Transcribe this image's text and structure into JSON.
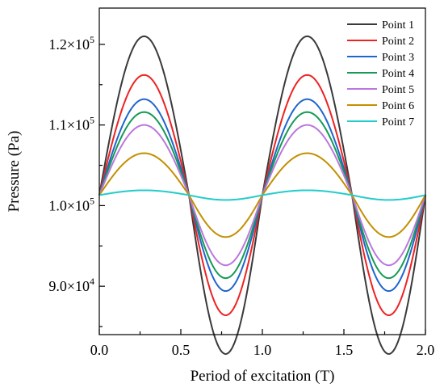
{
  "chart_data": {
    "type": "line",
    "xlabel": "Period of excitation (T)",
    "ylabel": "Pressure (Pa)",
    "xlim": [
      0,
      2
    ],
    "ylim": [
      84000,
      124500
    ],
    "x_ticks": [
      {
        "value": 0.0,
        "label": "0.0"
      },
      {
        "value": 0.5,
        "label": "0.5"
      },
      {
        "value": 1.0,
        "label": "1.0"
      },
      {
        "value": 1.5,
        "label": "1.5"
      },
      {
        "value": 2.0,
        "label": "2.0"
      }
    ],
    "y_ticks": [
      {
        "value": 90000,
        "mant": "9.0×10",
        "exp": "4"
      },
      {
        "value": 100000,
        "mant": "1.0×10",
        "exp": "5"
      },
      {
        "value": 110000,
        "mant": "1.1×10",
        "exp": "5"
      },
      {
        "value": 120000,
        "mant": "1.2×10",
        "exp": "5"
      }
    ],
    "legend_position": "top-right",
    "series": [
      {
        "name": "Point 1",
        "color": "#3a3a3a",
        "baseline": 101300,
        "amplitude": 19700
      },
      {
        "name": "Point 2",
        "color": "#ee2222",
        "baseline": 101300,
        "amplitude": 14900
      },
      {
        "name": "Point 3",
        "color": "#1f66cc",
        "baseline": 101300,
        "amplitude": 11900
      },
      {
        "name": "Point 4",
        "color": "#159a55",
        "baseline": 101300,
        "amplitude": 10300
      },
      {
        "name": "Point 5",
        "color": "#bb77dd",
        "baseline": 101300,
        "amplitude": 8700
      },
      {
        "name": "Point 6",
        "color": "#c29000",
        "baseline": 101300,
        "amplitude": 5200
      },
      {
        "name": "Point 7",
        "color": "#22cccc",
        "baseline": 101300,
        "amplitude": 600
      }
    ],
    "curve": "sinusoidal, period 1 T, peaks near x = 0.27 and 1.27, crossings at x = 0, 0.55, 1.0, 1.55, 2.0"
  }
}
